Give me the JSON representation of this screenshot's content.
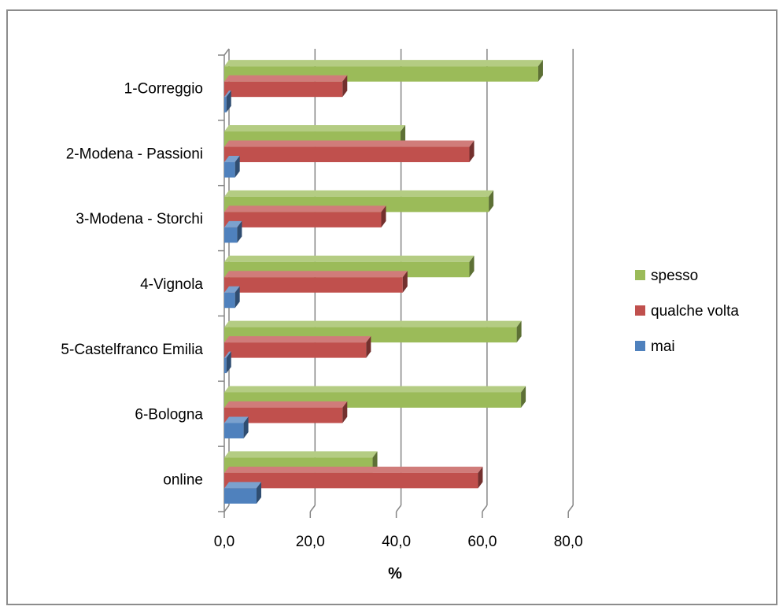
{
  "chart_data": {
    "type": "bar",
    "orientation": "horizontal",
    "style": "3d-clustered",
    "categories": [
      "1-Correggio",
      "2-Modena - Passioni",
      "3-Modena - Storchi",
      "4-Vignola",
      "5-Castelfranco Emilia",
      "6-Bologna",
      "online"
    ],
    "series": [
      {
        "name": "spesso",
        "color": "#9BBB59",
        "values": [
          73.0,
          41.0,
          61.5,
          57.0,
          68.0,
          69.0,
          34.5
        ]
      },
      {
        "name": "qualche volta",
        "color": "#C0504D",
        "values": [
          27.5,
          57.0,
          36.5,
          41.5,
          33.0,
          27.5,
          59.0
        ]
      },
      {
        "name": "mai",
        "color": "#4F81BD",
        "values": [
          0.5,
          2.5,
          3.0,
          2.5,
          0.5,
          4.5,
          7.5
        ]
      }
    ],
    "xlabel": "%",
    "ylabel": "",
    "xlim": [
      0,
      80
    ],
    "x_ticks": [
      "0,0",
      "20,0",
      "40,0",
      "60,0",
      "80,0"
    ],
    "grid": true,
    "legend": "right"
  }
}
